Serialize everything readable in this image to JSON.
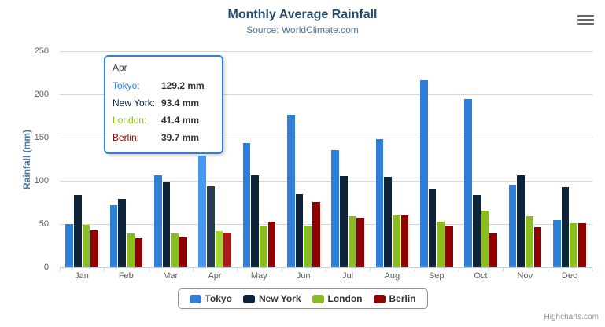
{
  "header": {
    "title": "Monthly Average Rainfall",
    "subtitle": "Source: WorldClimate.com"
  },
  "export_menu": {
    "icon": "hamburger-menu-icon"
  },
  "y_axis": {
    "title": "Rainfall (mm)"
  },
  "chart_data": {
    "type": "bar",
    "title": "Monthly Average Rainfall",
    "subtitle": "Source: WorldClimate.com",
    "xlabel": "",
    "ylabel": "Rainfall (mm)",
    "ylim": [
      0,
      250
    ],
    "yticks": [
      0,
      50,
      100,
      150,
      200,
      250
    ],
    "grid": true,
    "legend_position": "bottom",
    "categories": [
      "Jan",
      "Feb",
      "Mar",
      "Apr",
      "May",
      "Jun",
      "Jul",
      "Aug",
      "Sep",
      "Oct",
      "Nov",
      "Dec"
    ],
    "series": [
      {
        "name": "Tokyo",
        "color": "#2f7ed8",
        "hover_color": "#4897f1",
        "values": [
          49.9,
          71.5,
          106.4,
          129.2,
          144.0,
          176.0,
          135.6,
          148.5,
          216.4,
          194.1,
          95.6,
          54.4
        ]
      },
      {
        "name": "New York",
        "color": "#0d233a",
        "hover_color": "#263d54",
        "values": [
          83.6,
          78.8,
          98.5,
          93.4,
          106.0,
          84.5,
          105.0,
          104.3,
          91.2,
          83.5,
          106.6,
          92.3
        ]
      },
      {
        "name": "London",
        "color": "#8bbc21",
        "hover_color": "#a5d63b",
        "values": [
          48.9,
          38.8,
          39.3,
          41.4,
          47.0,
          48.3,
          59.0,
          59.6,
          52.4,
          65.2,
          59.3,
          51.2
        ]
      },
      {
        "name": "Berlin",
        "color": "#910000",
        "hover_color": "#ab1a1a",
        "values": [
          42.4,
          33.2,
          34.5,
          39.7,
          52.6,
          75.5,
          57.4,
          60.4,
          47.6,
          39.1,
          46.8,
          51.1
        ]
      }
    ],
    "hovered_category": "Apr"
  },
  "tooltip": {
    "header": "Apr",
    "border_color": "#2f7ed8",
    "rows": [
      {
        "label": "Tokyo:",
        "value": "129.2 mm",
        "color": "#2f7ed8"
      },
      {
        "label": "New York:",
        "value": "93.4 mm",
        "color": "#0d233a"
      },
      {
        "label": "London:",
        "value": "41.4 mm",
        "color": "#8bbc21"
      },
      {
        "label": "Berlin:",
        "value": "39.7 mm",
        "color": "#910000"
      }
    ]
  },
  "legend": {
    "items": [
      {
        "label": "Tokyo",
        "color": "#2f7ed8"
      },
      {
        "label": "New York",
        "color": "#0d233a"
      },
      {
        "label": "London",
        "color": "#8bbc21"
      },
      {
        "label": "Berlin",
        "color": "#910000"
      }
    ]
  },
  "credits": {
    "label": "Highcharts.com"
  },
  "colors": {
    "title": "#274b6d",
    "subtitle": "#4d759e",
    "axis_label": "#606060",
    "gridline": "#d8d8d8",
    "axis_line": "#c0d0e0",
    "legend_border": "#909090",
    "credits": "#909090"
  }
}
